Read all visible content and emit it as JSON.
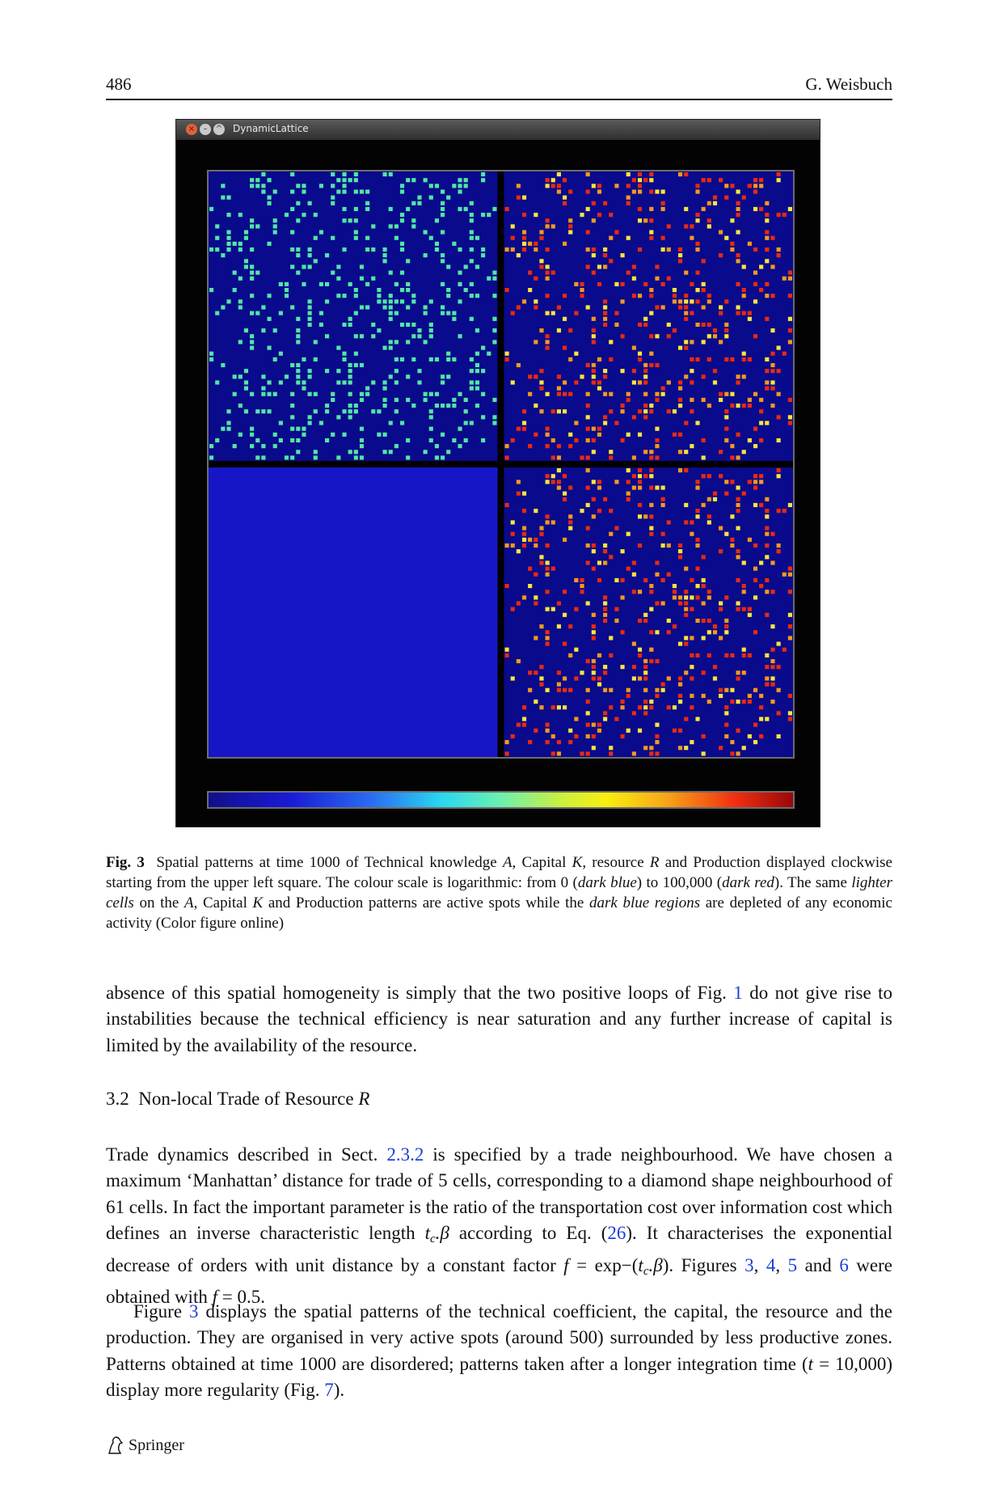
{
  "header": {
    "page_number": "486",
    "author": "G. Weisbuch"
  },
  "figure": {
    "window_title": "DynamicLattice",
    "caption_label": "Fig. 3",
    "colors": {
      "dark_blue": "#0a0a8c",
      "cyan_green": "#52e6a6",
      "medium_blue": "#1616c6",
      "red": "#ea2a10",
      "orange": "#f39a1c",
      "yellow": "#f8e63c"
    }
  },
  "caption_parts": {
    "t1": "Spatial patterns at time 1000 of Technical knowledge ",
    "A": "A",
    "t2": ", Capital ",
    "K": "K",
    "t3": ", resource ",
    "R": "R",
    "t4": " and Production displayed clockwise starting from the upper left square. The colour scale is logarithmic: from 0 (",
    "dark_blue": "dark blue",
    "t5": ") to 100,000 (",
    "dark_red": "dark red",
    "t6": "). The same ",
    "lighter_cells": "lighter cells",
    "t7": " on the ",
    "A2": "A",
    "t8": ", Capital ",
    "K2": "K",
    "t9": " and Production patterns are active spots while the ",
    "dark_blue_regions": "dark blue regions",
    "t10": " are depleted of any economic activity (Color figure online)"
  },
  "p1": {
    "t1": "absence of this spatial homogeneity is simply that the two positive loops of Fig. ",
    "link1": "1",
    "t2": " do not give rise to instabilities because the technical efficiency is near saturation and any further increase of capital is limited by the availability of the resource."
  },
  "section": {
    "number": "3.2",
    "title": "Non-local Trade of Resource ",
    "var": "R"
  },
  "p2": {
    "t1": "Trade dynamics described in Sect. ",
    "link_sect": "2.3.2",
    "t2": " is specified by a trade neighbourhood. We have chosen a maximum ‘Manhattan’ distance for trade of 5 cells, corresponding to a diamond shape neighbourhood of 61 cells. In fact the important parameter is the ratio of the transportation cost over information cost which defines an inverse characteristic length ",
    "tc": "t",
    "c": "c",
    "beta": ".β",
    "t3": " according to Eq. (",
    "link_eq": "26",
    "t4": "). It characterises the exponential decrease of orders with unit distance by a constant factor ",
    "f": "f",
    "t5": " = exp−(",
    "tc2": "t",
    "c2": "c",
    "beta2": ".β",
    "t6": "). Figures ",
    "l3": "3",
    "s1": ", ",
    "l4": "4",
    "s2": ", ",
    "l5": "5",
    "s3": " and ",
    "l6": "6",
    "t7": " were obtained with ",
    "f2": "f",
    "t8": " = 0.5."
  },
  "p3": {
    "t1": "Figure ",
    "l3": "3",
    "t2": " displays the spatial patterns of the technical coefficient, the capital, the resource and the production. They are organised in very active spots (around 500) surrounded by less productive zones. Patterns obtained at time 1000 are disordered; patterns taken after a longer integration time (",
    "t": "t",
    "t3": " = 10,000) display more regularity (Fig. ",
    "l7": "7",
    "t4": ")."
  },
  "footer": {
    "publisher": "Springer"
  }
}
